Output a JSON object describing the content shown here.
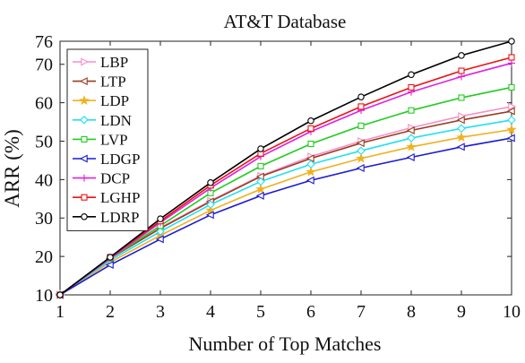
{
  "chart_data": {
    "type": "line",
    "title": "AT&T Database",
    "xlabel": "Number of Top Matches",
    "ylabel": "ARR (%)",
    "x": [
      1,
      2,
      3,
      4,
      5,
      6,
      7,
      8,
      9,
      10
    ],
    "xlim": [
      1,
      10
    ],
    "ylim": [
      10,
      76
    ],
    "xticks": [
      1,
      2,
      3,
      4,
      5,
      6,
      7,
      8,
      9,
      10
    ],
    "yticks": [
      10,
      20,
      30,
      40,
      50,
      60,
      70,
      76
    ],
    "grid": false,
    "legend_position": "top-left",
    "series": [
      {
        "name": "LBP",
        "color": "#f48fc6",
        "marker": "triangle-right",
        "values": [
          10,
          19.5,
          27.5,
          34.5,
          41.0,
          46.0,
          50.0,
          53.5,
          56.5,
          59.0
        ]
      },
      {
        "name": "LTP",
        "color": "#9b3a1e",
        "marker": "triangle-left",
        "values": [
          10,
          19.5,
          27.3,
          34.3,
          40.8,
          45.5,
          49.5,
          52.8,
          55.5,
          57.8
        ]
      },
      {
        "name": "LDP",
        "color": "#f2b01e",
        "marker": "star",
        "values": [
          10,
          18.5,
          25.5,
          32.0,
          37.5,
          42.0,
          45.5,
          48.5,
          51.0,
          53.0
        ]
      },
      {
        "name": "LDN",
        "color": "#20e0f0",
        "marker": "diamond",
        "values": [
          10,
          19.0,
          26.5,
          33.5,
          39.5,
          44.0,
          47.5,
          50.8,
          53.3,
          55.5
        ]
      },
      {
        "name": "LVP",
        "color": "#22cc22",
        "marker": "square",
        "values": [
          10,
          19.5,
          28.0,
          36.5,
          43.5,
          49.3,
          54.0,
          58.0,
          61.3,
          64.0
        ]
      },
      {
        "name": "LDGP",
        "color": "#1a1ad4",
        "marker": "triangle-left",
        "values": [
          10,
          17.8,
          24.5,
          30.8,
          35.8,
          39.8,
          43.0,
          45.8,
          48.5,
          50.8
        ]
      },
      {
        "name": "DCP",
        "color": "#e020e0",
        "marker": "plus",
        "values": [
          10,
          19.5,
          28.8,
          37.8,
          46.0,
          52.5,
          58.0,
          62.8,
          66.8,
          70.3
        ]
      },
      {
        "name": "LGHP",
        "color": "#ee1111",
        "marker": "square",
        "values": [
          10,
          19.8,
          29.2,
          38.5,
          46.8,
          53.3,
          59.0,
          64.0,
          68.3,
          71.8
        ]
      },
      {
        "name": "LDRP",
        "color": "#000000",
        "marker": "circle",
        "values": [
          10,
          19.8,
          29.8,
          39.2,
          48.0,
          55.3,
          61.5,
          67.3,
          72.3,
          76.0
        ]
      }
    ]
  }
}
